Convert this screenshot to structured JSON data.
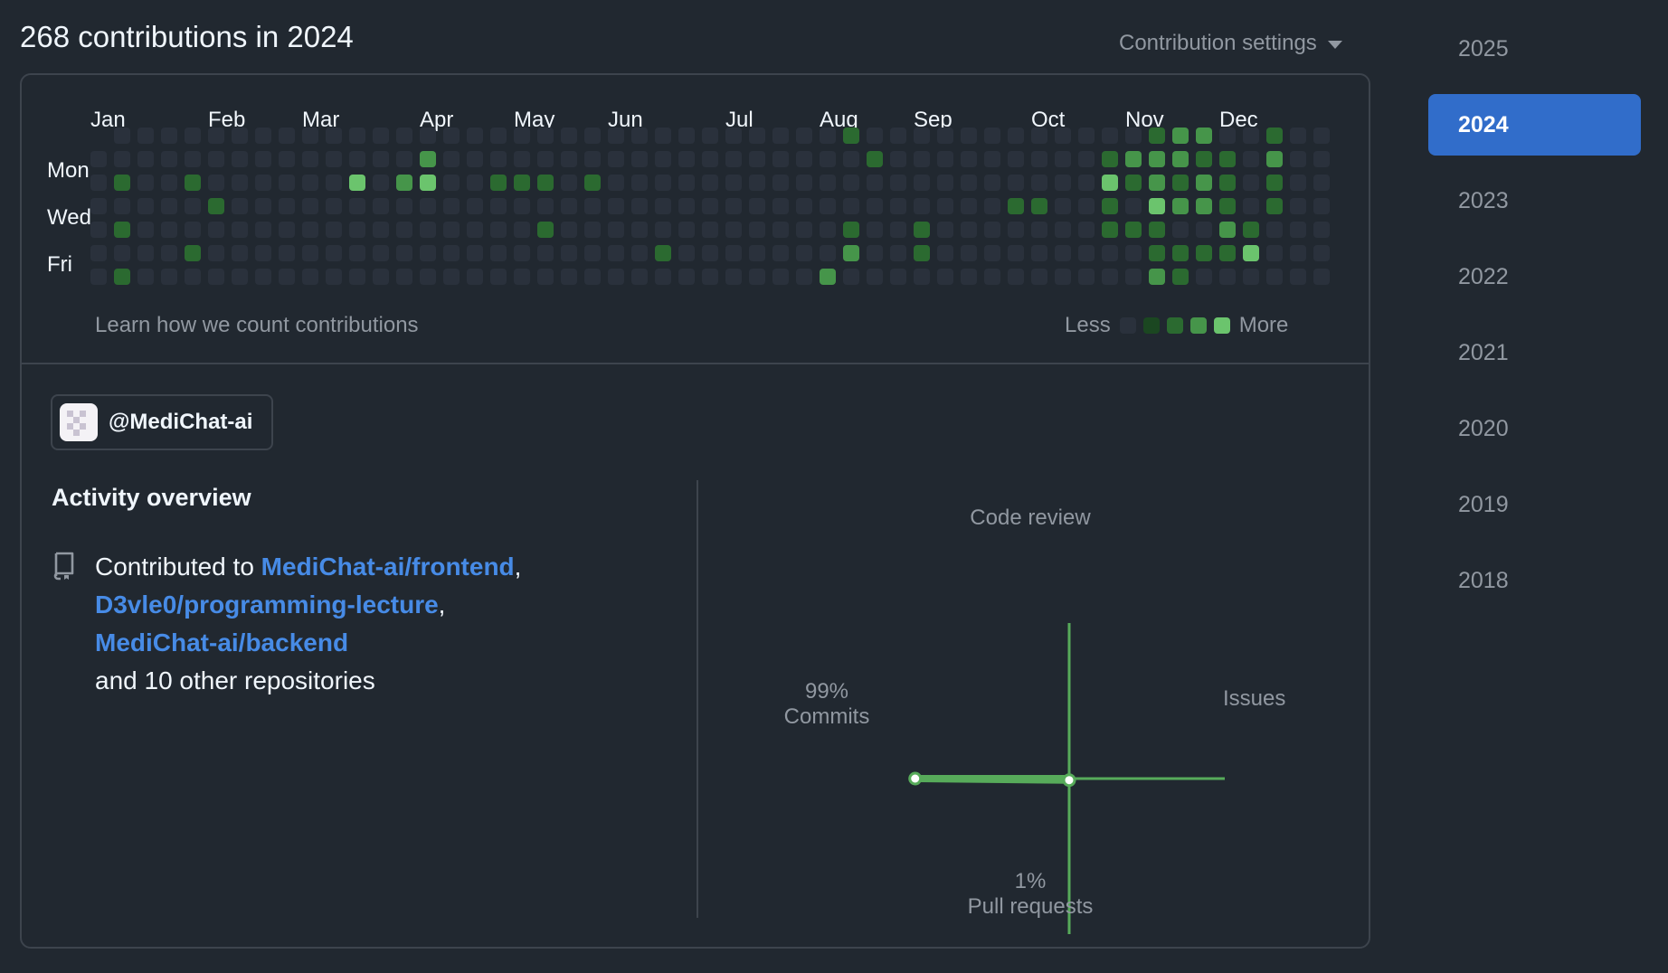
{
  "header": {
    "title": "268 contributions in 2024",
    "settings_label": "Contribution settings"
  },
  "graph": {
    "months": [
      "Jan",
      "Feb",
      "Mar",
      "Apr",
      "May",
      "Jun",
      "Jul",
      "Aug",
      "Sep",
      "Oct",
      "Nov",
      "Dec"
    ],
    "month_week_index": [
      0,
      5,
      9,
      14,
      18,
      22,
      27,
      31,
      35,
      40,
      44,
      48
    ],
    "day_labels": [
      "Mon",
      "Wed",
      "Fri"
    ],
    "first_day_row": 1,
    "weeks": 53,
    "level_colors": [
      "#2a313c",
      "#1b4721",
      "#2b6a30",
      "#46954a",
      "#6bc46d"
    ],
    "active_cells": [
      [
        1,
        2,
        2
      ],
      [
        1,
        4,
        2
      ],
      [
        1,
        6,
        2
      ],
      [
        4,
        2,
        2
      ],
      [
        4,
        5,
        2
      ],
      [
        5,
        3,
        2
      ],
      [
        11,
        2,
        4
      ],
      [
        13,
        2,
        3
      ],
      [
        14,
        1,
        3
      ],
      [
        14,
        2,
        4
      ],
      [
        17,
        2,
        2
      ],
      [
        18,
        2,
        2
      ],
      [
        19,
        2,
        2
      ],
      [
        19,
        4,
        2
      ],
      [
        21,
        2,
        2
      ],
      [
        24,
        5,
        2
      ],
      [
        31,
        6,
        3
      ],
      [
        32,
        0,
        2
      ],
      [
        32,
        4,
        2
      ],
      [
        32,
        5,
        3
      ],
      [
        33,
        1,
        2
      ],
      [
        35,
        4,
        2
      ],
      [
        35,
        5,
        2
      ],
      [
        39,
        3,
        2
      ],
      [
        40,
        3,
        2
      ],
      [
        43,
        1,
        2
      ],
      [
        43,
        2,
        4
      ],
      [
        43,
        3,
        2
      ],
      [
        43,
        4,
        2
      ],
      [
        44,
        1,
        3
      ],
      [
        44,
        2,
        2
      ],
      [
        44,
        4,
        2
      ],
      [
        45,
        0,
        2
      ],
      [
        45,
        1,
        3
      ],
      [
        45,
        2,
        3
      ],
      [
        45,
        3,
        4
      ],
      [
        45,
        4,
        2
      ],
      [
        45,
        5,
        2
      ],
      [
        45,
        6,
        3
      ],
      [
        46,
        0,
        3
      ],
      [
        46,
        1,
        3
      ],
      [
        46,
        2,
        2
      ],
      [
        46,
        3,
        3
      ],
      [
        46,
        5,
        2
      ],
      [
        46,
        6,
        2
      ],
      [
        47,
        0,
        3
      ],
      [
        47,
        1,
        2
      ],
      [
        47,
        2,
        3
      ],
      [
        47,
        3,
        3
      ],
      [
        47,
        5,
        2
      ],
      [
        48,
        1,
        2
      ],
      [
        48,
        2,
        2
      ],
      [
        48,
        3,
        2
      ],
      [
        48,
        4,
        3
      ],
      [
        48,
        5,
        2
      ],
      [
        49,
        4,
        2
      ],
      [
        49,
        5,
        4
      ],
      [
        50,
        0,
        2
      ],
      [
        50,
        1,
        3
      ],
      [
        50,
        2,
        2
      ],
      [
        50,
        3,
        2
      ]
    ],
    "learn_link": "Learn how we count contributions",
    "legend_less": "Less",
    "legend_more": "More"
  },
  "org": {
    "handle": "@MediChat-ai"
  },
  "activity": {
    "title": "Activity overview",
    "prefix": "Contributed to ",
    "repos": [
      "MediChat-ai/frontend",
      "D3vle0/programming-lecture",
      "MediChat-ai/backend"
    ],
    "separator": ",",
    "suffix": "and 10 other repositories"
  },
  "radar": {
    "code_review_label": "Code review",
    "issues_label": "Issues",
    "commits_pct": "99%",
    "commits_label": "Commits",
    "pull_requests_pct": "1%",
    "pull_requests_label": "Pull requests",
    "commits_value": 0.99,
    "pull_requests_value": 0.01,
    "code_review_value": 0,
    "issues_value": 0,
    "line_color": "#57ab5a"
  },
  "years": [
    "2025",
    "2024",
    "2023",
    "2022",
    "2021",
    "2020",
    "2019",
    "2018"
  ],
  "selected_year": "2024"
}
